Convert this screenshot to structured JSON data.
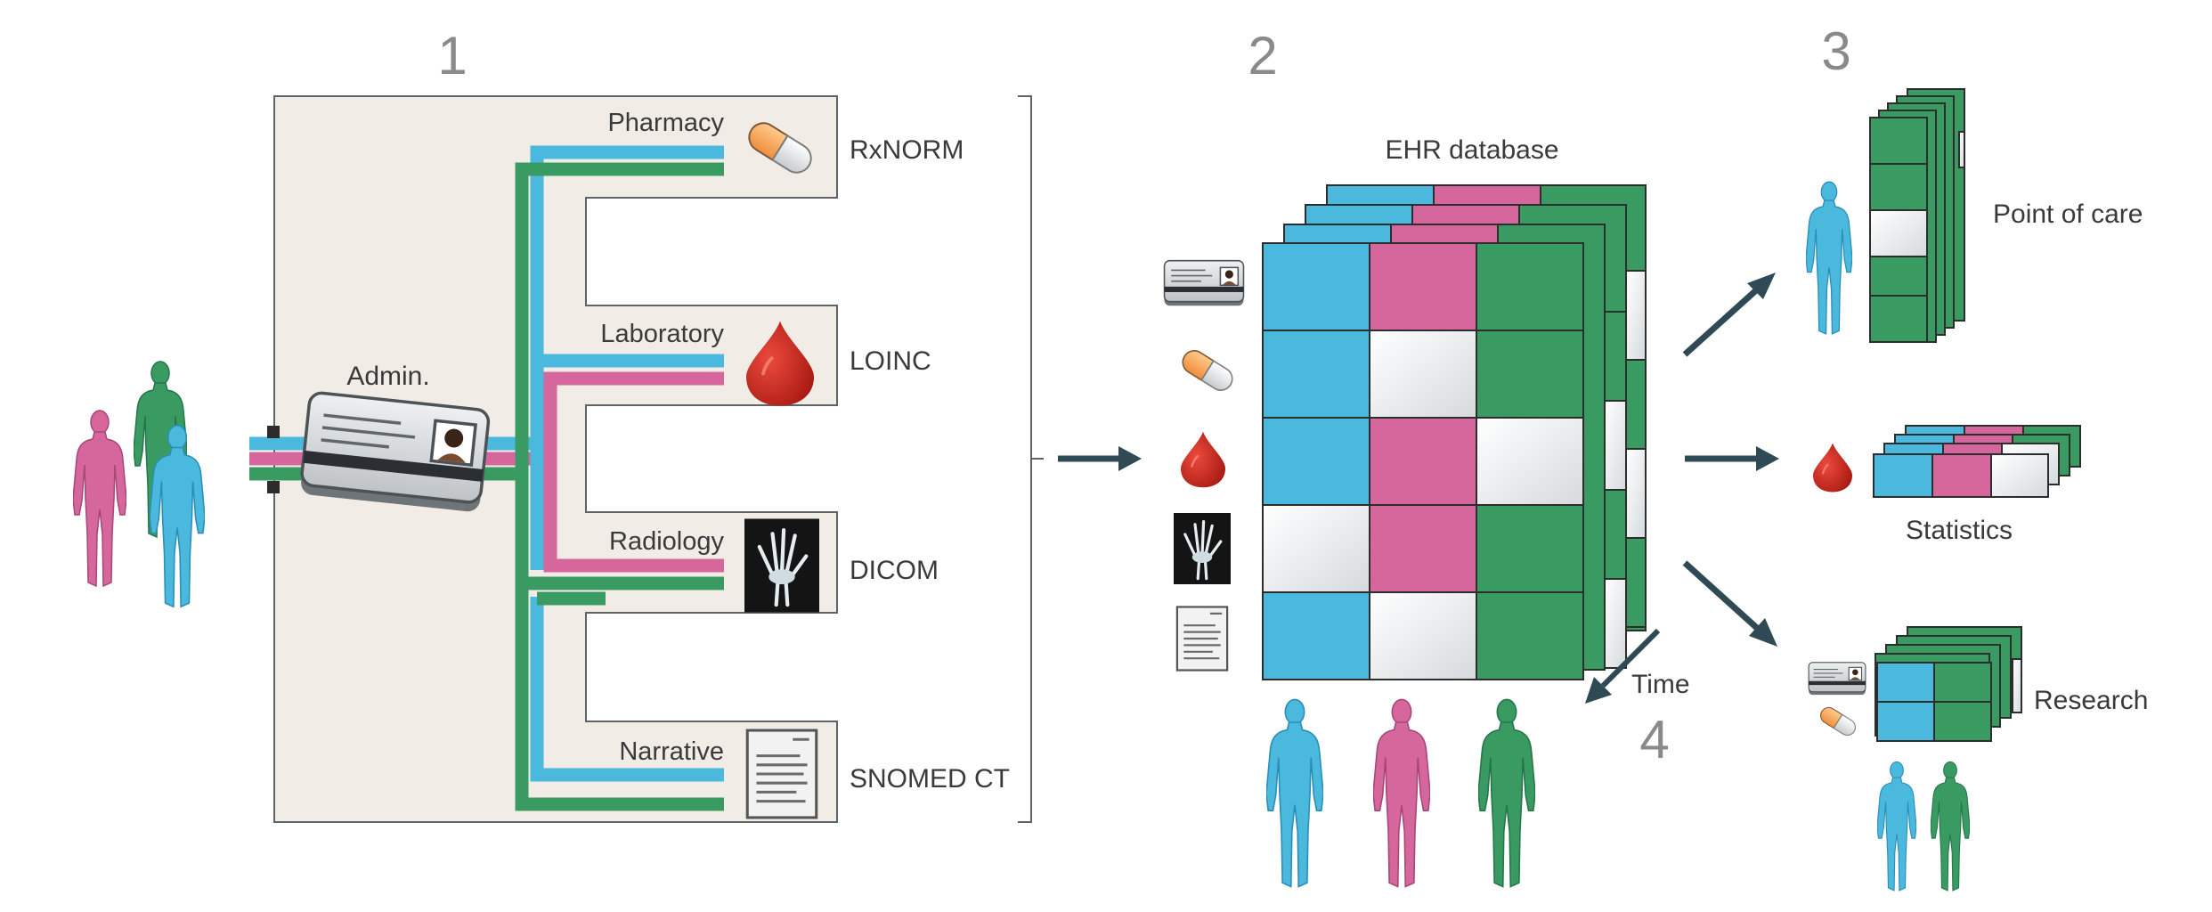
{
  "steps": {
    "one": "1",
    "two": "2",
    "three": "3",
    "four": "4"
  },
  "sources": [
    {
      "label": "Pharmacy",
      "standard": "RxNORM"
    },
    {
      "label": "Laboratory",
      "standard": "LOINC"
    },
    {
      "label": "Radiology",
      "standard": "DICOM"
    },
    {
      "label": "Narrative",
      "standard": "SNOMED CT"
    }
  ],
  "admin_label": "Admin.",
  "ehr_label": "EHR database",
  "time_label": "Time",
  "outputs": {
    "point_of_care": "Point of care",
    "statistics": "Statistics",
    "research": "Research"
  },
  "colors": {
    "blue": "#4bb8de",
    "pink": "#d6679d",
    "green": "#3a9b62",
    "panel": "#f1ece6",
    "arrow": "#2f4a55",
    "step_number": "#8a8a8a"
  }
}
